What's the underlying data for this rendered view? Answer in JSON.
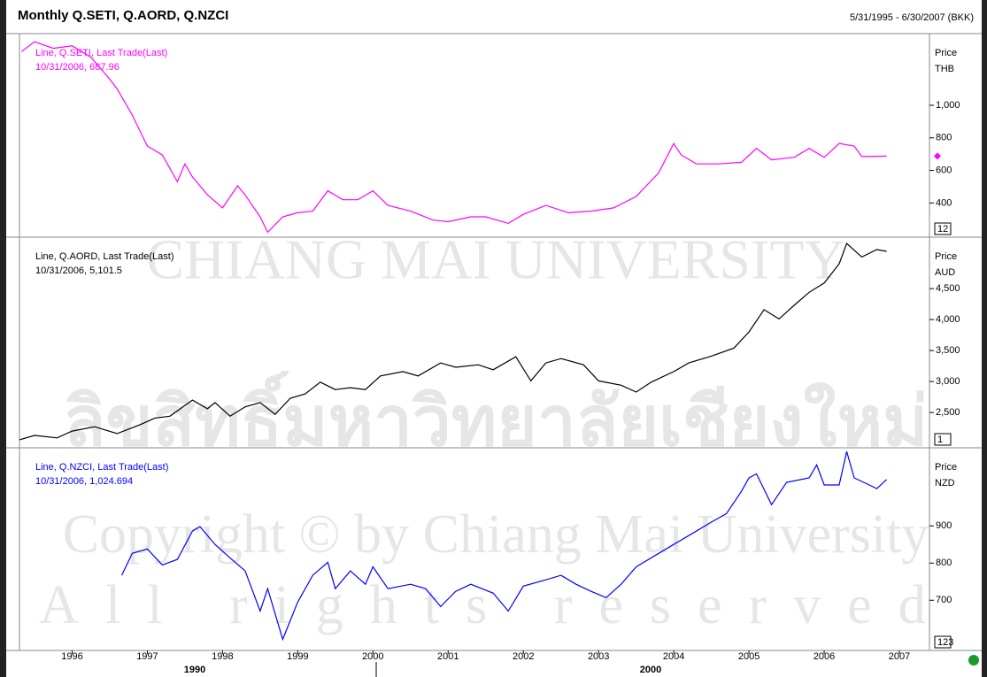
{
  "title": "Monthly Q.SETI, Q.AORD, Q.NZCI",
  "date_range": "5/31/1995 - 6/30/2007 (BKK)",
  "bottom_labels": [
    "1990",
    "2000"
  ],
  "watermark": [
    "CHIANG MAI UNIVERSITY",
    "ลิขสิทธิ์มหาวิทยาลัยเชียงใหม่",
    "Copyright © by Chiang Mai University",
    "All rights reserved"
  ],
  "chart_data": [
    {
      "type": "line",
      "ylabel": "Price",
      "unit": "THB",
      "badge": "12",
      "annotation": "10/31/2006, 687.96",
      "last_marker": true,
      "xlim": [
        1995.3,
        2007.4
      ],
      "ylim": [
        190,
        1440
      ],
      "yticks": [
        400,
        600,
        800,
        {
          "value": 1000,
          "label": "1,000"
        }
      ],
      "series": [
        {
          "name": "Line, Q.SETI, Last Trade(Last)",
          "color": "#ff00ff",
          "x": [
            1995.33,
            1995.5,
            1995.75,
            1996.0,
            1996.25,
            1996.5,
            1996.6,
            1996.8,
            1997.0,
            1997.2,
            1997.4,
            1997.5,
            1997.6,
            1997.8,
            1998.0,
            1998.2,
            1998.3,
            1998.5,
            1998.6,
            1998.8,
            1999.0,
            1999.2,
            1999.4,
            1999.6,
            1999.8,
            2000.0,
            2000.2,
            2000.5,
            2000.8,
            2001.0,
            2001.3,
            2001.5,
            2001.8,
            2002.0,
            2002.3,
            2002.6,
            2002.9,
            2003.2,
            2003.5,
            2003.8,
            2004.0,
            2004.1,
            2004.3,
            2004.6,
            2004.9,
            2005.1,
            2005.3,
            2005.6,
            2005.8,
            2006.0,
            2006.2,
            2006.4,
            2006.5,
            2006.83
          ],
          "values": [
            1330,
            1390,
            1350,
            1365,
            1295,
            1160,
            1100,
            940,
            750,
            695,
            530,
            640,
            560,
            450,
            370,
            505,
            450,
            315,
            220,
            315,
            340,
            350,
            475,
            420,
            420,
            475,
            385,
            350,
            295,
            285,
            315,
            315,
            275,
            330,
            385,
            340,
            350,
            370,
            440,
            585,
            765,
            695,
            640,
            640,
            650,
            735,
            665,
            680,
            735,
            680,
            765,
            750,
            685,
            687.96
          ]
        }
      ]
    },
    {
      "type": "line",
      "ylabel": "Price",
      "unit": "AUD",
      "badge": "1",
      "annotation": "10/31/2006, 5,101.5",
      "xlim": [
        1995.3,
        2007.4
      ],
      "ylim": [
        1930,
        5330
      ],
      "yticks": [
        {
          "value": 2500,
          "label": "2,500"
        },
        {
          "value": 3000,
          "label": "3,000"
        },
        {
          "value": 3500,
          "label": "3,500"
        },
        {
          "value": 4000,
          "label": "4,000"
        },
        {
          "value": 4500,
          "label": "4,500"
        }
      ],
      "series": [
        {
          "name": "Line, Q.AORD, Last Trade(Last)",
          "color": "#000000",
          "x": [
            1995.3,
            1995.5,
            1995.8,
            1996.0,
            1996.3,
            1996.6,
            1996.9,
            1997.1,
            1997.3,
            1997.6,
            1997.8,
            1997.9,
            1998.1,
            1998.3,
            1998.5,
            1998.7,
            1998.9,
            1999.1,
            1999.3,
            1999.5,
            1999.7,
            1999.9,
            2000.1,
            2000.4,
            2000.6,
            2000.9,
            2001.1,
            2001.4,
            2001.6,
            2001.9,
            2002.1,
            2002.3,
            2002.5,
            2002.8,
            2003.0,
            2003.3,
            2003.5,
            2003.7,
            2004.0,
            2004.2,
            2004.5,
            2004.8,
            2005.0,
            2005.2,
            2005.4,
            2005.6,
            2005.8,
            2006.0,
            2006.2,
            2006.3,
            2006.5,
            2006.7,
            2006.83
          ],
          "values": [
            2060,
            2130,
            2090,
            2200,
            2270,
            2160,
            2300,
            2410,
            2440,
            2700,
            2560,
            2660,
            2440,
            2590,
            2660,
            2470,
            2730,
            2800,
            2990,
            2870,
            2900,
            2870,
            3090,
            3160,
            3090,
            3300,
            3230,
            3270,
            3190,
            3400,
            3010,
            3300,
            3370,
            3270,
            3010,
            2940,
            2830,
            2990,
            3160,
            3300,
            3410,
            3540,
            3800,
            4160,
            4010,
            4230,
            4440,
            4590,
            4900,
            5230,
            5010,
            5130,
            5101.5
          ]
        }
      ]
    },
    {
      "type": "line",
      "ylabel": "Price",
      "unit": "NZD",
      "badge": "123",
      "annotation": "10/31/2006, 1,024.694",
      "xlim": [
        1995.3,
        2007.4
      ],
      "ylim": [
        565,
        1110
      ],
      "yticks": [
        700,
        800,
        900
      ],
      "xticks": [
        1996,
        1997,
        1998,
        1999,
        2000,
        2001,
        2002,
        2003,
        2004,
        2005,
        2006,
        2007
      ],
      "series": [
        {
          "name": "Line, Q.NZCI, Last Trade(Last)",
          "color": "#0000ff",
          "x": [
            1996.66,
            1996.8,
            1997.0,
            1997.2,
            1997.4,
            1997.6,
            1997.7,
            1997.9,
            1998.1,
            1998.3,
            1998.5,
            1998.6,
            1998.8,
            1999.0,
            1999.2,
            1999.4,
            1999.5,
            1999.7,
            1999.9,
            2000.0,
            2000.2,
            2000.5,
            2000.7,
            2000.9,
            2001.1,
            2001.3,
            2001.6,
            2001.8,
            2002.0,
            2002.3,
            2002.5,
            2002.7,
            2002.9,
            2003.1,
            2003.3,
            2003.5,
            2003.8,
            2004.0,
            2004.2,
            2004.5,
            2004.7,
            2004.9,
            2005.0,
            2005.1,
            2005.3,
            2005.5,
            2005.8,
            2005.9,
            2006.0,
            2006.2,
            2006.3,
            2006.4,
            2006.6,
            2006.7,
            2006.83
          ],
          "values": [
            767,
            826,
            838,
            795,
            810,
            886,
            898,
            850,
            814,
            779,
            671,
            731,
            595,
            695,
            767,
            802,
            731,
            779,
            743,
            790,
            731,
            743,
            731,
            683,
            724,
            743,
            719,
            671,
            738,
            755,
            767,
            743,
            724,
            707,
            743,
            790,
            826,
            850,
            874,
            910,
            933,
            993,
            1029,
            1040,
            957,
            1017,
            1029,
            1064,
            1010,
            1010,
            1100,
            1029,
            1010,
            1000,
            1024.694
          ]
        }
      ]
    }
  ]
}
